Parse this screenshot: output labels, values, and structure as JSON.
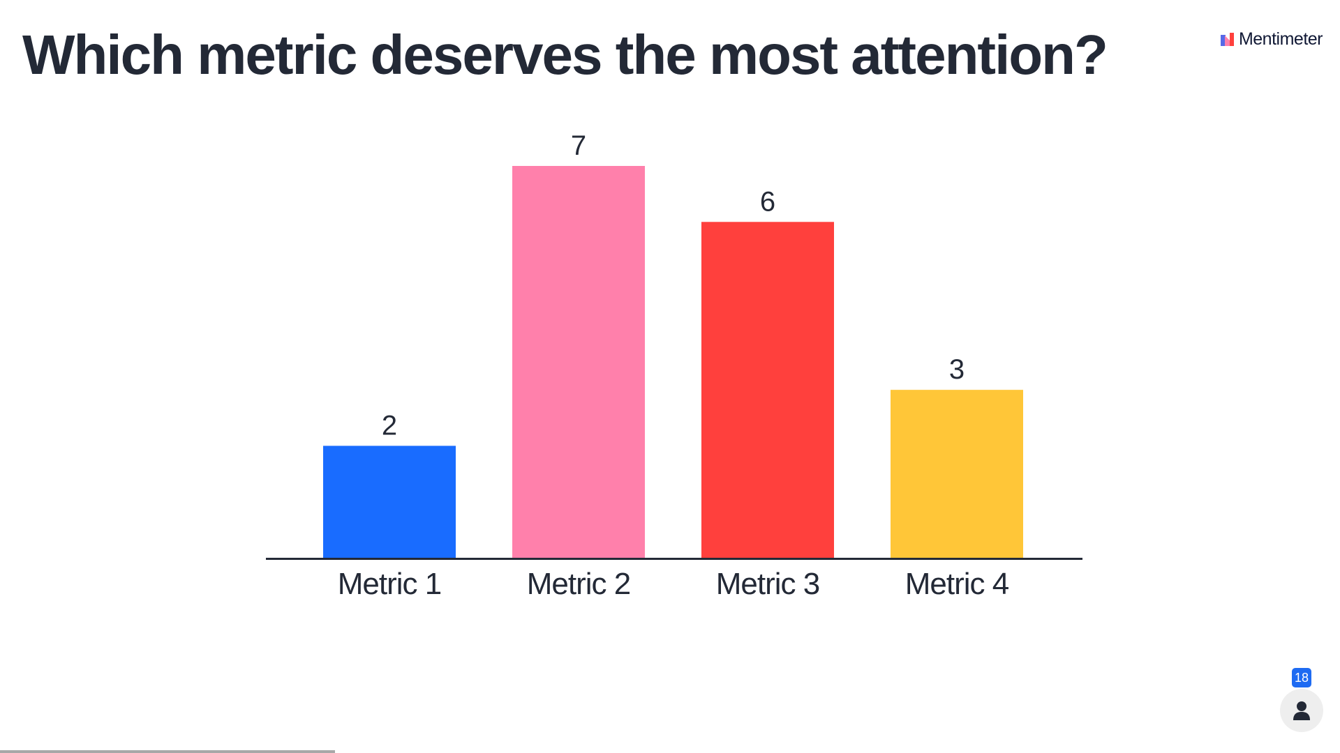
{
  "slide": {
    "title": "Which metric deserves the most attention?"
  },
  "brand": {
    "name": "Mentimeter",
    "logo_icon": "mentimeter-logo-icon",
    "logo_colors": [
      "#5769e7",
      "#ff80ab",
      "#ff403d"
    ]
  },
  "participants": {
    "count": "18",
    "icon": "person-icon",
    "badge_color": "#1e6bf2"
  },
  "progress": {
    "fraction": 0.25
  },
  "chart_data": {
    "type": "bar",
    "categories": [
      "Metric 1",
      "Metric 2",
      "Metric 3",
      "Metric 4"
    ],
    "values": [
      2,
      7,
      6,
      3
    ],
    "value_labels": [
      "2",
      "7",
      "6",
      "3"
    ],
    "colors": [
      "#196cff",
      "#ff80ab",
      "#ff403d",
      "#ffc638"
    ],
    "ylim": [
      0,
      7
    ],
    "grid": false,
    "legend": "none",
    "axis_color": "#232936"
  }
}
